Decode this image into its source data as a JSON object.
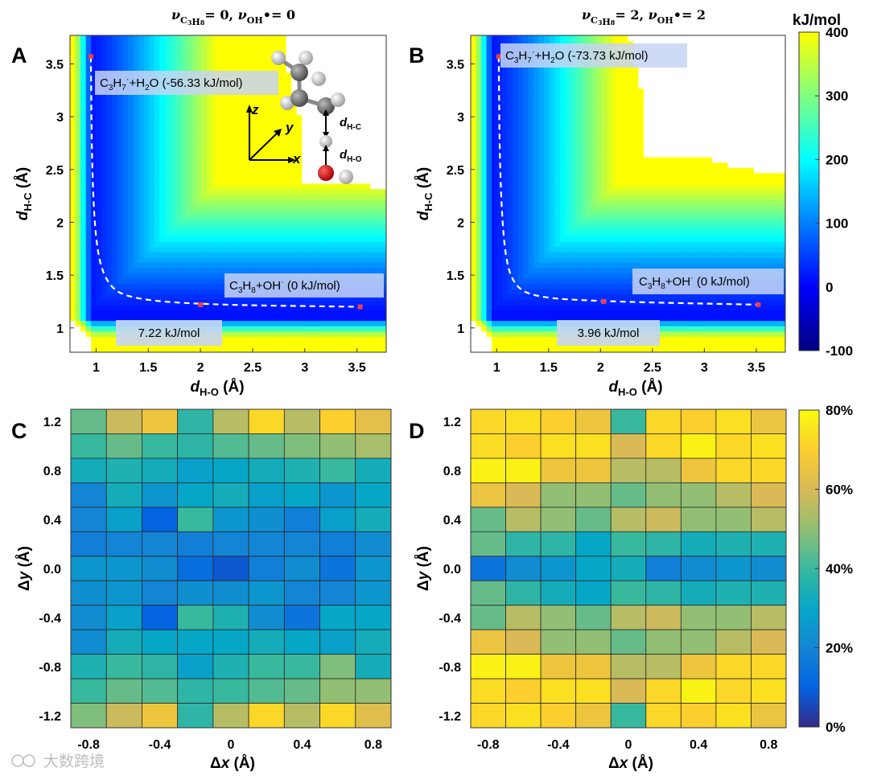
{
  "colors": {
    "parula_stops": [
      "#352a87",
      "#0363e1",
      "#1485d4",
      "#06a7c6",
      "#38b99e",
      "#92bf73",
      "#d9ba56",
      "#fcce2e",
      "#f9fb0e"
    ],
    "energy_stops": [
      "#00007f",
      "#0000ff",
      "#007fff",
      "#00ffff",
      "#7fff7f",
      "#ffff00"
    ],
    "path_color": "#ffffff",
    "marker_color": "#e8404a",
    "label_bg": "#c7d4f4"
  },
  "panels": {
    "a": {
      "letter": "A",
      "title_html": "<tspan font-style='italic'>ν</tspan><tspan font-size='11' dy='5'>C<tspan font-size='8' dy='2'>3</tspan>H<tspan font-size='8' dy='0'>8</tspan></tspan><tspan dy='-7'>= 0,  </tspan><tspan font-style='italic'>ν</tspan><tspan font-size='11' dy='5'>OH</tspan><tspan dy='-5'>•= 0</tspan>",
      "xlabel_html": "<tspan font-style='italic'>d</tspan><tspan font-size='13' dy='5'>H-O</tspan><tspan dy='-5'> (Å)</tspan>",
      "ylabel_html": "<tspan font-style='italic'>d</tspan><tspan font-size='13' dy='5'>H-C</tspan><tspan dy='-5'> (Å)</tspan>",
      "label_top": "C3H7·+H2O (-56.33 kJ/mol)",
      "label_top_html": "C<tspan font-size='10' dy='4'>3</tspan><tspan dy='-4'>H</tspan><tspan font-size='10' dy='4'>7</tspan><tspan font-size='11' dy='-10'>·</tspan><tspan dy='6'>+H</tspan><tspan font-size='10' dy='4'>2</tspan><tspan dy='-4'>O (-56.33 kJ/mol)</tspan>",
      "label_bottom": "C3H8+OH· (0 kJ/mol)",
      "label_bottom_html": "C<tspan font-size='10' dy='4'>3</tspan><tspan dy='-4'>H</tspan><tspan font-size='10' dy='4'>8</tspan><tspan dy='-4'>+OH</tspan><tspan font-size='11' dy='-6'>·</tspan><tspan dy='6'> (0 kJ/mol)</tspan>",
      "barrier": "7.22 kJ/mol",
      "inset": {
        "axis_z": "z",
        "axis_y": "y",
        "axis_x": "x",
        "d_hc_html": "<tspan font-style='italic'>d</tspan><tspan font-size='10' dy='4'>H-C</tspan>",
        "d_ho_html": "<tspan font-style='italic'>d</tspan><tspan font-size='10' dy='4'>H-O</tspan>"
      }
    },
    "b": {
      "letter": "B",
      "title_html": "<tspan font-style='italic'>ν</tspan><tspan font-size='11' dy='5'>C<tspan font-size='8' dy='2'>3</tspan>H<tspan font-size='8' dy='0'>8</tspan></tspan><tspan dy='-7'>= 2,  </tspan><tspan font-style='italic'>ν</tspan><tspan font-size='11' dy='5'>OH</tspan><tspan dy='-5'>•= 2</tspan>",
      "xlabel_html": "<tspan font-style='italic'>d</tspan><tspan font-size='13' dy='5'>H-O</tspan><tspan dy='-5'> (Å)</tspan>",
      "ylabel_html": "<tspan font-style='italic'>d</tspan><tspan font-size='13' dy='5'>H-C</tspan><tspan dy='-5'> (Å)</tspan>",
      "label_top": "C3H7·+H2O (-73.73 kJ/mol)",
      "label_top_html": "C<tspan font-size='10' dy='4'>3</tspan><tspan dy='-4'>H</tspan><tspan font-size='10' dy='4'>7</tspan><tspan font-size='11' dy='-10'>·</tspan><tspan dy='6'>+H</tspan><tspan font-size='10' dy='4'>2</tspan><tspan dy='-4'>O (-73.73 kJ/mol)</tspan>",
      "label_bottom": "C3H8+OH· (0 kJ/mol)",
      "label_bottom_html": "C<tspan font-size='10' dy='4'>3</tspan><tspan dy='-4'>H</tspan><tspan font-size='10' dy='4'>8</tspan><tspan dy='-4'>+OH</tspan><tspan font-size='11' dy='-6'>·</tspan><tspan dy='6'> (0 kJ/mol)</tspan>",
      "barrier": "3.96 kJ/mol"
    },
    "c": {
      "letter": "C",
      "xlabel_html": "Δ<tspan font-style='italic'>x</tspan> (Å)",
      "ylabel_html": "Δ<tspan font-style='italic'>y</tspan> (Å)"
    },
    "d": {
      "letter": "D",
      "xlabel_html": "Δ<tspan font-style='italic'>x</tspan> (Å)",
      "ylabel_html": "Δ<tspan font-style='italic'>y</tspan> (Å)"
    }
  },
  "colorbar_energy": {
    "title": "kJ/mol",
    "ticks": [
      "400",
      "300",
      "200",
      "100",
      "0",
      "-100"
    ],
    "tick_values": [
      400,
      300,
      200,
      100,
      0,
      -100
    ]
  },
  "colorbar_percent": {
    "ticks": [
      "80%",
      "60%",
      "40%",
      "20%",
      "0%"
    ],
    "tick_values": [
      80,
      60,
      40,
      20,
      0
    ]
  },
  "watermark": "大数跨境",
  "chart_data": [
    {
      "type": "heatmap",
      "panel": "A",
      "title": "ν_C3H8 = 0, ν_OH• = 0",
      "xlabel": "d_H-O (Å)",
      "ylabel": "d_H-C (Å)",
      "xlim": [
        0.75,
        3.78
      ],
      "ylim": [
        0.77,
        3.77
      ],
      "xticks": [
        1,
        1.5,
        2,
        2.5,
        3,
        3.5
      ],
      "yticks": [
        1,
        1.5,
        2,
        2.5,
        3,
        3.5
      ],
      "xtick_labels": [
        "1",
        "1.5",
        "2",
        "2.5",
        "3",
        "3.5"
      ],
      "ytick_labels": [
        "1",
        "1.5",
        "2",
        "2.5",
        "3",
        "3.5"
      ],
      "colorbar": "kJ/mol",
      "clim": [
        -100,
        400
      ],
      "saturation_boundary": {
        "x_asymptote": 2.95,
        "y_asymptote": 2.35,
        "k": 0.07
      },
      "reaction_path": [
        [
          0.95,
          3.57
        ],
        [
          0.96,
          2.5
        ],
        [
          1.0,
          1.75
        ],
        [
          1.1,
          1.42
        ],
        [
          1.3,
          1.28
        ],
        [
          2.0,
          1.22
        ],
        [
          3.53,
          1.2
        ]
      ],
      "markers": [
        [
          0.95,
          3.57
        ],
        [
          2.0,
          1.22
        ],
        [
          3.53,
          1.2
        ]
      ],
      "product_energy": -56.33,
      "reactant_energy": 0,
      "barrier_energy": 7.22
    },
    {
      "type": "heatmap",
      "panel": "B",
      "title": "ν_C3H8 = 2, ν_OH• = 2",
      "xlabel": "d_H-O (Å)",
      "ylabel": "d_H-C (Å)",
      "xlim": [
        0.75,
        3.78
      ],
      "ylim": [
        0.77,
        3.77
      ],
      "xticks": [
        1,
        1.5,
        2,
        2.5,
        3,
        3.5
      ],
      "yticks": [
        1,
        1.5,
        2,
        2.5,
        3,
        3.5
      ],
      "xtick_labels": [
        "1",
        "1.5",
        "2",
        "2.5",
        "3",
        "3.5"
      ],
      "ytick_labels": [
        "1",
        "1.5",
        "2",
        "2.5",
        "3",
        "3.5"
      ],
      "colorbar": "kJ/mol",
      "clim": [
        -100,
        400
      ],
      "saturation_boundary": {
        "x_asymptote": 2.4,
        "y_asymptote": 2.6,
        "k": 0.08
      },
      "reaction_path": [
        [
          1.02,
          3.57
        ],
        [
          1.03,
          2.5
        ],
        [
          1.07,
          1.75
        ],
        [
          1.15,
          1.42
        ],
        [
          1.35,
          1.29
        ],
        [
          2.03,
          1.25
        ],
        [
          3.52,
          1.22
        ]
      ],
      "markers": [
        [
          1.02,
          3.57
        ],
        [
          2.03,
          1.25
        ],
        [
          3.52,
          1.22
        ]
      ],
      "product_energy": -73.73,
      "reactant_energy": 0,
      "barrier_energy": 3.96
    },
    {
      "type": "heatmap",
      "panel": "C",
      "xlabel": "Δx (Å)",
      "ylabel": "Δy (Å)",
      "x_centers": [
        -0.8,
        -0.6,
        -0.4,
        -0.2,
        0.0,
        0.2,
        0.4,
        0.6,
        0.8
      ],
      "y_centers": [
        1.2,
        1.0,
        0.8,
        0.6,
        0.4,
        0.2,
        0.0,
        -0.2,
        -0.4,
        -0.6,
        -0.8,
        -1.0,
        -1.2
      ],
      "xticks": [
        -0.8,
        -0.4,
        0,
        0.4,
        0.8
      ],
      "xtick_labels": [
        "-0.8",
        "-0.4",
        "0",
        "0.4",
        "0.8"
      ],
      "yticks": [
        1.2,
        0.8,
        0.4,
        0.0,
        -0.4,
        -0.8,
        -1.2
      ],
      "ytick_labels": [
        "1.2",
        "0.8",
        "0.4",
        "0.0",
        "-0.4",
        "-0.8",
        "-1.2"
      ],
      "colorbar": "percent",
      "clim": [
        0,
        80
      ],
      "values": [
        [
          45,
          58,
          66,
          38,
          55,
          72,
          55,
          70,
          63
        ],
        [
          40,
          45,
          40,
          38,
          43,
          45,
          48,
          50,
          53
        ],
        [
          33,
          35,
          33,
          28,
          30,
          33,
          35,
          40,
          33
        ],
        [
          20,
          33,
          25,
          30,
          33,
          28,
          30,
          25,
          30
        ],
        [
          20,
          28,
          10,
          40,
          25,
          23,
          18,
          28,
          33
        ],
        [
          18,
          20,
          20,
          18,
          20,
          20,
          20,
          18,
          22
        ],
        [
          25,
          25,
          22,
          13,
          8,
          18,
          22,
          15,
          25
        ],
        [
          23,
          25,
          20,
          23,
          23,
          25,
          20,
          20,
          25
        ],
        [
          22,
          28,
          10,
          40,
          35,
          22,
          15,
          30,
          30
        ],
        [
          22,
          33,
          30,
          30,
          30,
          33,
          30,
          28,
          33
        ],
        [
          35,
          40,
          38,
          28,
          35,
          40,
          40,
          48,
          33
        ],
        [
          40,
          45,
          43,
          38,
          40,
          43,
          45,
          50,
          50
        ],
        [
          48,
          58,
          66,
          38,
          55,
          72,
          55,
          72,
          62
        ]
      ]
    },
    {
      "type": "heatmap",
      "panel": "D",
      "xlabel": "Δx (Å)",
      "ylabel": "Δy (Å)",
      "x_centers": [
        -0.8,
        -0.6,
        -0.4,
        -0.2,
        0.0,
        0.2,
        0.4,
        0.6,
        0.8
      ],
      "y_centers": [
        1.2,
        1.0,
        0.8,
        0.6,
        0.4,
        0.2,
        0.0,
        -0.2,
        -0.4,
        -0.6,
        -0.8,
        -1.0,
        -1.2
      ],
      "xticks": [
        -0.8,
        -0.4,
        0,
        0.4,
        0.8
      ],
      "xtick_labels": [
        "-0.8",
        "-0.4",
        "0",
        "0.4",
        "0.8"
      ],
      "yticks": [
        1.2,
        0.8,
        0.4,
        0.0,
        -0.4,
        -0.8,
        -1.2
      ],
      "ytick_labels": [
        "1.2",
        "0.8",
        "0.4",
        "0.0",
        "-0.4",
        "-0.8",
        "-1.2"
      ],
      "colorbar": "percent",
      "clim": [
        0,
        80
      ],
      "values": [
        [
          72,
          74,
          70,
          66,
          40,
          72,
          70,
          74,
          65
        ],
        [
          73,
          70,
          74,
          74,
          60,
          72,
          78,
          72,
          74
        ],
        [
          78,
          78,
          66,
          66,
          55,
          55,
          66,
          72,
          72
        ],
        [
          65,
          60,
          50,
          50,
          45,
          50,
          50,
          55,
          60
        ],
        [
          45,
          55,
          50,
          45,
          55,
          58,
          50,
          50,
          55
        ],
        [
          45,
          38,
          38,
          30,
          40,
          38,
          33,
          35,
          35
        ],
        [
          15,
          22,
          25,
          30,
          33,
          18,
          22,
          25,
          22
        ],
        [
          45,
          38,
          33,
          30,
          40,
          38,
          33,
          35,
          35
        ],
        [
          45,
          55,
          50,
          45,
          55,
          58,
          50,
          50,
          55
        ],
        [
          65,
          60,
          50,
          50,
          45,
          50,
          50,
          55,
          60
        ],
        [
          78,
          78,
          66,
          66,
          55,
          55,
          66,
          72,
          72
        ],
        [
          73,
          70,
          74,
          74,
          60,
          72,
          78,
          72,
          74
        ],
        [
          72,
          74,
          70,
          66,
          40,
          72,
          70,
          74,
          65
        ]
      ]
    }
  ]
}
